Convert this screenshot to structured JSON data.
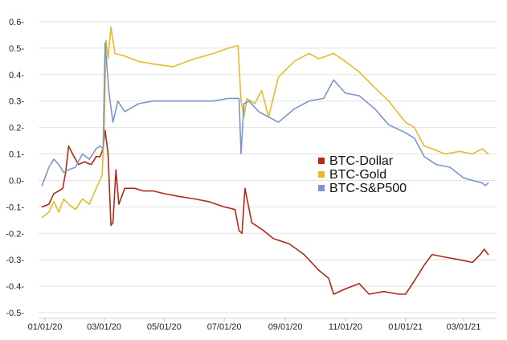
{
  "chart_data": {
    "type": "line",
    "title": "",
    "xlabel": "",
    "ylabel": "",
    "ylim": [
      -0.5,
      0.6
    ],
    "xlim": [
      "2019-12-01",
      "2021-04-01"
    ],
    "grid": {
      "horizontal": true,
      "vertical": false
    },
    "legend_position": "right-middle",
    "x_ticks": [
      {
        "date": "2020-01-01",
        "label": "01/01/20"
      },
      {
        "date": "2020-03-01",
        "label": "03/01/20"
      },
      {
        "date": "2020-05-01",
        "label": "05/01/20"
      },
      {
        "date": "2020-07-01",
        "label": "07/01/20"
      },
      {
        "date": "2020-09-01",
        "label": "09/01/20"
      },
      {
        "date": "2020-11-01",
        "label": "11/01/20"
      },
      {
        "date": "2021-01-01",
        "label": "01/01/21"
      },
      {
        "date": "2021-03-01",
        "label": "03/01/21"
      }
    ],
    "y_ticks": [
      {
        "value": 0.6,
        "label": "0.6-"
      },
      {
        "value": 0.5,
        "label": "0.5-"
      },
      {
        "value": 0.4,
        "label": "0.4-"
      },
      {
        "value": 0.3,
        "label": "0.3-"
      },
      {
        "value": 0.2,
        "label": "0.2-"
      },
      {
        "value": 0.1,
        "label": "0.1-"
      },
      {
        "value": 0.0,
        "label": "0.0-"
      },
      {
        "value": -0.1,
        "label": "-0.1-"
      },
      {
        "value": -0.2,
        "label": "-0.2-"
      },
      {
        "value": -0.3,
        "label": "-0.3-"
      },
      {
        "value": -0.4,
        "label": "-0.4-"
      },
      {
        "value": -0.5,
        "label": "-0.5-"
      }
    ],
    "series": [
      {
        "name": "BTC-Dollar",
        "color": "#b22a16",
        "points": [
          [
            "2019-12-29",
            -0.1
          ],
          [
            "2020-01-05",
            -0.09
          ],
          [
            "2020-01-10",
            -0.05
          ],
          [
            "2020-01-15",
            -0.04
          ],
          [
            "2020-01-19",
            -0.03
          ],
          [
            "2020-01-22",
            0.03
          ],
          [
            "2020-01-25",
            0.13
          ],
          [
            "2020-01-29",
            0.1
          ],
          [
            "2020-02-04",
            0.06
          ],
          [
            "2020-02-10",
            0.07
          ],
          [
            "2020-02-17",
            0.06
          ],
          [
            "2020-02-22",
            0.09
          ],
          [
            "2020-02-26",
            0.09
          ],
          [
            "2020-02-29",
            0.12
          ],
          [
            "2020-03-02",
            0.19
          ],
          [
            "2020-03-05",
            0.1
          ],
          [
            "2020-03-08",
            -0.17
          ],
          [
            "2020-03-10",
            -0.16
          ],
          [
            "2020-03-13",
            0.04
          ],
          [
            "2020-03-16",
            -0.09
          ],
          [
            "2020-03-22",
            -0.03
          ],
          [
            "2020-04-01",
            -0.03
          ],
          [
            "2020-04-10",
            -0.04
          ],
          [
            "2020-04-20",
            -0.04
          ],
          [
            "2020-05-01",
            -0.05
          ],
          [
            "2020-05-15",
            -0.06
          ],
          [
            "2020-06-01",
            -0.07
          ],
          [
            "2020-06-15",
            -0.08
          ],
          [
            "2020-07-01",
            -0.1
          ],
          [
            "2020-07-12",
            -0.11
          ],
          [
            "2020-07-16",
            -0.19
          ],
          [
            "2020-07-19",
            -0.2
          ],
          [
            "2020-07-22",
            -0.03
          ],
          [
            "2020-07-29",
            -0.16
          ],
          [
            "2020-08-10",
            -0.19
          ],
          [
            "2020-08-20",
            -0.22
          ],
          [
            "2020-09-05",
            -0.24
          ],
          [
            "2020-09-20",
            -0.28
          ],
          [
            "2020-10-05",
            -0.34
          ],
          [
            "2020-10-15",
            -0.37
          ],
          [
            "2020-10-20",
            -0.43
          ],
          [
            "2020-11-01",
            -0.41
          ],
          [
            "2020-11-15",
            -0.39
          ],
          [
            "2020-11-25",
            -0.43
          ],
          [
            "2020-12-10",
            -0.42
          ],
          [
            "2020-12-25",
            -0.43
          ],
          [
            "2021-01-01",
            -0.43
          ],
          [
            "2021-01-10",
            -0.38
          ],
          [
            "2021-01-20",
            -0.32
          ],
          [
            "2021-01-28",
            -0.28
          ],
          [
            "2021-02-10",
            -0.29
          ],
          [
            "2021-02-25",
            -0.3
          ],
          [
            "2021-03-10",
            -0.31
          ],
          [
            "2021-03-18",
            -0.28
          ],
          [
            "2021-03-22",
            -0.26
          ],
          [
            "2021-03-26",
            -0.28
          ]
        ]
      },
      {
        "name": "BTC-Gold",
        "color": "#e6bb2a",
        "points": [
          [
            "2019-12-29",
            -0.14
          ],
          [
            "2020-01-05",
            -0.12
          ],
          [
            "2020-01-10",
            -0.08
          ],
          [
            "2020-01-15",
            -0.12
          ],
          [
            "2020-01-20",
            -0.07
          ],
          [
            "2020-01-25",
            -0.09
          ],
          [
            "2020-02-01",
            -0.11
          ],
          [
            "2020-02-08",
            -0.07
          ],
          [
            "2020-02-15",
            -0.09
          ],
          [
            "2020-02-22",
            -0.03
          ],
          [
            "2020-02-28",
            0.02
          ],
          [
            "2020-03-01",
            0.19
          ],
          [
            "2020-03-03",
            0.53
          ],
          [
            "2020-03-05",
            0.46
          ],
          [
            "2020-03-08",
            0.58
          ],
          [
            "2020-03-12",
            0.48
          ],
          [
            "2020-03-22",
            0.47
          ],
          [
            "2020-04-05",
            0.45
          ],
          [
            "2020-04-20",
            0.44
          ],
          [
            "2020-05-10",
            0.43
          ],
          [
            "2020-06-01",
            0.46
          ],
          [
            "2020-06-20",
            0.48
          ],
          [
            "2020-07-05",
            0.5
          ],
          [
            "2020-07-15",
            0.51
          ],
          [
            "2020-07-18",
            0.3
          ],
          [
            "2020-07-21",
            0.24
          ],
          [
            "2020-07-24",
            0.31
          ],
          [
            "2020-08-01",
            0.29
          ],
          [
            "2020-08-08",
            0.34
          ],
          [
            "2020-08-15",
            0.24
          ],
          [
            "2020-08-25",
            0.39
          ],
          [
            "2020-09-10",
            0.45
          ],
          [
            "2020-09-25",
            0.48
          ],
          [
            "2020-10-05",
            0.46
          ],
          [
            "2020-10-20",
            0.48
          ],
          [
            "2020-11-01",
            0.45
          ],
          [
            "2020-11-15",
            0.41
          ],
          [
            "2020-12-01",
            0.35
          ],
          [
            "2020-12-15",
            0.3
          ],
          [
            "2021-01-01",
            0.22
          ],
          [
            "2021-01-10",
            0.2
          ],
          [
            "2021-01-20",
            0.13
          ],
          [
            "2021-01-28",
            0.12
          ],
          [
            "2021-02-10",
            0.1
          ],
          [
            "2021-02-25",
            0.11
          ],
          [
            "2021-03-10",
            0.1
          ],
          [
            "2021-03-20",
            0.12
          ],
          [
            "2021-03-26",
            0.1
          ]
        ]
      },
      {
        "name": "BTC-S&P500",
        "color": "#7a96cc",
        "points": [
          [
            "2019-12-29",
            -0.02
          ],
          [
            "2020-01-05",
            0.05
          ],
          [
            "2020-01-10",
            0.08
          ],
          [
            "2020-01-15",
            0.06
          ],
          [
            "2020-01-20",
            0.03
          ],
          [
            "2020-01-25",
            0.04
          ],
          [
            "2020-02-01",
            0.05
          ],
          [
            "2020-02-08",
            0.1
          ],
          [
            "2020-02-15",
            0.08
          ],
          [
            "2020-02-22",
            0.12
          ],
          [
            "2020-02-26",
            0.13
          ],
          [
            "2020-02-29",
            0.12
          ],
          [
            "2020-03-02",
            0.52
          ],
          [
            "2020-03-06",
            0.33
          ],
          [
            "2020-03-10",
            0.22
          ],
          [
            "2020-03-15",
            0.3
          ],
          [
            "2020-03-22",
            0.26
          ],
          [
            "2020-04-05",
            0.29
          ],
          [
            "2020-04-20",
            0.3
          ],
          [
            "2020-05-10",
            0.3
          ],
          [
            "2020-06-01",
            0.3
          ],
          [
            "2020-06-20",
            0.3
          ],
          [
            "2020-07-05",
            0.31
          ],
          [
            "2020-07-16",
            0.31
          ],
          [
            "2020-07-18",
            0.1
          ],
          [
            "2020-07-21",
            0.29
          ],
          [
            "2020-07-26",
            0.3
          ],
          [
            "2020-08-05",
            0.26
          ],
          [
            "2020-08-15",
            0.24
          ],
          [
            "2020-08-25",
            0.22
          ],
          [
            "2020-09-10",
            0.27
          ],
          [
            "2020-09-25",
            0.3
          ],
          [
            "2020-10-10",
            0.31
          ],
          [
            "2020-10-20",
            0.38
          ],
          [
            "2020-11-01",
            0.33
          ],
          [
            "2020-11-15",
            0.32
          ],
          [
            "2020-12-01",
            0.27
          ],
          [
            "2020-12-15",
            0.21
          ],
          [
            "2021-01-01",
            0.18
          ],
          [
            "2021-01-10",
            0.16
          ],
          [
            "2021-01-20",
            0.09
          ],
          [
            "2021-02-01",
            0.06
          ],
          [
            "2021-02-15",
            0.05
          ],
          [
            "2021-03-01",
            0.01
          ],
          [
            "2021-03-10",
            0.0
          ],
          [
            "2021-03-20",
            -0.01
          ],
          [
            "2021-03-23",
            -0.02
          ],
          [
            "2021-03-26",
            -0.01
          ]
        ]
      }
    ]
  }
}
